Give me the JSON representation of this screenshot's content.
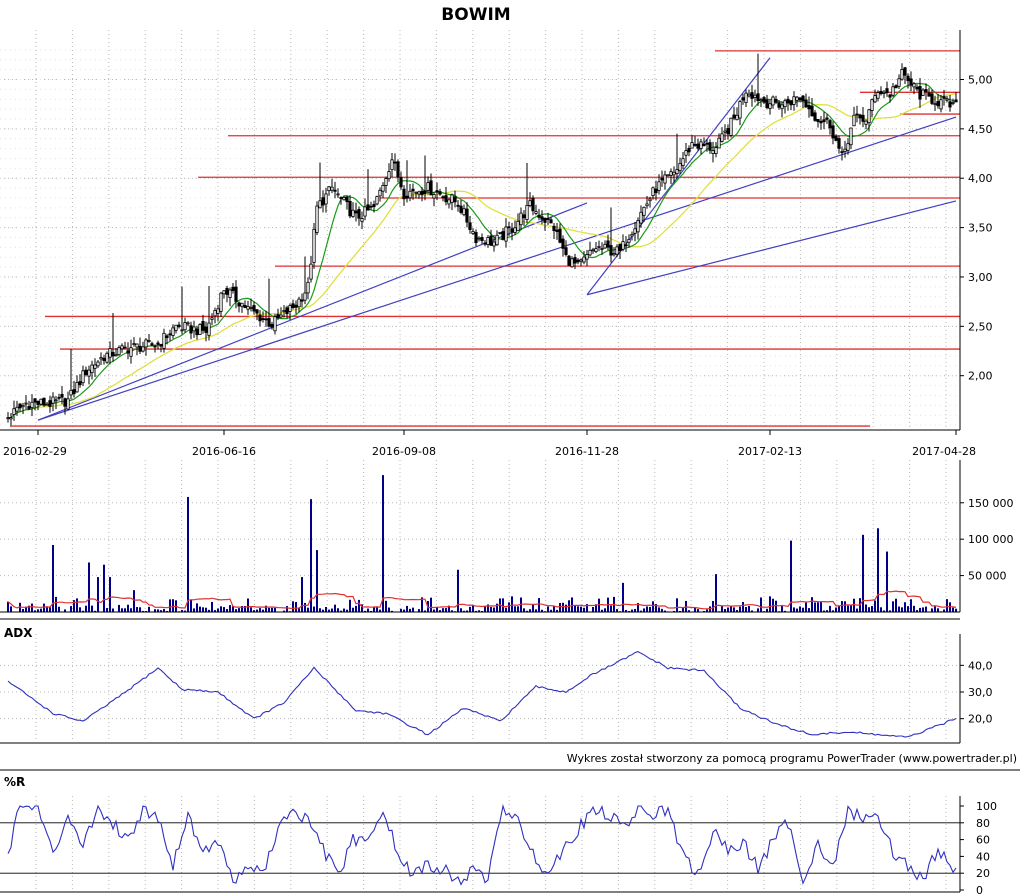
{
  "title": "BOWIM",
  "footer": "Wykres został stworzony za pomocą programu PowerTrader (www.powertrader.pl)",
  "colors": {
    "candle": "#000000",
    "ma_short": "#1a9a1a",
    "ma_long": "#e0e040",
    "hline": "#e03030",
    "trendline": "#4040c0",
    "volume": "#00008b",
    "volume_avg": "#e03030",
    "indicator": "#3030c0"
  },
  "chart_data": [
    {
      "type": "candlestick",
      "name": "price",
      "title": "BOWIM",
      "x_tick_labels": [
        "2016-02-29",
        "2016-06-16",
        "2016-09-08",
        "2016-11-28",
        "2017-02-13",
        "2017-04-28"
      ],
      "y_tick_labels": [
        "2,00",
        "2,50",
        "3,00",
        "3,50",
        "4,00",
        "4,50",
        "5,00"
      ],
      "y_ticks": [
        2.0,
        2.5,
        3.0,
        3.5,
        4.0,
        4.5,
        5.0
      ],
      "ylim": [
        1.45,
        5.4
      ],
      "close_anchors": [
        [
          0,
          1.58
        ],
        [
          6,
          1.72
        ],
        [
          14,
          1.72
        ],
        [
          20,
          1.75
        ],
        [
          26,
          2.05
        ],
        [
          32,
          2.2
        ],
        [
          40,
          2.28
        ],
        [
          50,
          2.32
        ],
        [
          56,
          2.5
        ],
        [
          66,
          2.45
        ],
        [
          72,
          2.88
        ],
        [
          80,
          2.68
        ],
        [
          88,
          2.52
        ],
        [
          96,
          2.72
        ],
        [
          100,
          2.9
        ],
        [
          103,
          3.7
        ],
        [
          108,
          3.9
        ],
        [
          116,
          3.6
        ],
        [
          122,
          3.7
        ],
        [
          128,
          4.2
        ],
        [
          132,
          3.85
        ],
        [
          140,
          3.9
        ],
        [
          150,
          3.75
        ],
        [
          156,
          3.4
        ],
        [
          162,
          3.35
        ],
        [
          168,
          3.5
        ],
        [
          174,
          3.72
        ],
        [
          182,
          3.5
        ],
        [
          186,
          3.2
        ],
        [
          190,
          3.1
        ],
        [
          196,
          3.3
        ],
        [
          204,
          3.25
        ],
        [
          210,
          3.6
        ],
        [
          216,
          3.9
        ],
        [
          222,
          4.05
        ],
        [
          228,
          4.35
        ],
        [
          236,
          4.3
        ],
        [
          242,
          4.6
        ],
        [
          246,
          4.9
        ],
        [
          252,
          4.78
        ],
        [
          258,
          4.75
        ],
        [
          264,
          4.82
        ],
        [
          270,
          4.6
        ],
        [
          274,
          4.55
        ],
        [
          278,
          4.2
        ],
        [
          282,
          4.6
        ],
        [
          286,
          4.6
        ],
        [
          290,
          4.9
        ],
        [
          294,
          4.85
        ],
        [
          298,
          5.05
        ],
        [
          304,
          4.85
        ],
        [
          310,
          4.78
        ],
        [
          316,
          4.72
        ]
      ],
      "support_resistance_levels": [
        5.29,
        4.87,
        4.65,
        4.43,
        4.01,
        3.8,
        3.11,
        2.6,
        2.27,
        1.49
      ],
      "trendlines": [
        {
          "from": [
            "2016-02-29",
            1.55
          ],
          "to": [
            "2016-11-28",
            3.75
          ]
        },
        {
          "from": [
            "2016-02-29",
            1.55
          ],
          "to": [
            "2017-04-28",
            4.62
          ]
        },
        {
          "from": [
            "2016-11-28",
            2.82
          ],
          "to": [
            "2017-04-28",
            3.77
          ]
        },
        {
          "from": [
            "2016-11-28",
            2.82
          ],
          "to": [
            "2017-02-13",
            5.22
          ]
        }
      ],
      "series": [
        {
          "name": "",
          "kind": "moving-average-short",
          "period": 10
        },
        {
          "name": "",
          "kind": "moving-average-long",
          "period": 30
        }
      ]
    },
    {
      "type": "bar",
      "name": "volume",
      "y_tick_labels": [
        "50 000",
        "100 000",
        "150 000"
      ],
      "y_ticks": [
        50000,
        100000,
        150000
      ],
      "ylim": [
        0,
        195000
      ],
      "spikes": [
        [
          15,
          92000
        ],
        [
          27,
          68000
        ],
        [
          30,
          48000
        ],
        [
          32,
          65000
        ],
        [
          34,
          48000
        ],
        [
          42,
          30000
        ],
        [
          60,
          158000
        ],
        [
          98,
          48000
        ],
        [
          101,
          155000
        ],
        [
          103,
          85000
        ],
        [
          125,
          188000
        ],
        [
          150,
          58000
        ],
        [
          205,
          40000
        ],
        [
          236,
          52000
        ],
        [
          261,
          98000
        ],
        [
          285,
          106000
        ],
        [
          290,
          115000
        ],
        [
          293,
          83000
        ]
      ],
      "average_line": true
    },
    {
      "type": "line",
      "name": "ADX",
      "title": "ADX",
      "y_tick_labels": [
        "20,0",
        "30,0",
        "40,0"
      ],
      "y_ticks": [
        20,
        30,
        40
      ],
      "ylim": [
        12,
        48
      ],
      "anchors": [
        [
          0,
          34
        ],
        [
          15,
          22
        ],
        [
          25,
          19
        ],
        [
          38,
          29
        ],
        [
          50,
          39
        ],
        [
          58,
          31
        ],
        [
          70,
          30
        ],
        [
          82,
          20
        ],
        [
          92,
          26
        ],
        [
          102,
          39
        ],
        [
          116,
          23
        ],
        [
          126,
          22
        ],
        [
          140,
          14
        ],
        [
          152,
          24
        ],
        [
          164,
          19
        ],
        [
          176,
          32
        ],
        [
          186,
          30
        ],
        [
          194,
          36
        ],
        [
          210,
          45
        ],
        [
          220,
          39
        ],
        [
          232,
          38
        ],
        [
          244,
          24
        ],
        [
          256,
          18
        ],
        [
          268,
          14
        ],
        [
          280,
          15
        ],
        [
          300,
          13
        ],
        [
          316,
          20
        ]
      ]
    },
    {
      "type": "line",
      "name": "Williams %R",
      "title": "%R",
      "y_tick_labels": [
        "0",
        "20",
        "40",
        "60",
        "80",
        "100"
      ],
      "y_ticks": [
        0,
        20,
        40,
        60,
        80,
        100
      ],
      "ylim": [
        0,
        100
      ],
      "reference_levels": [
        20,
        80
      ],
      "anchors": [
        [
          0,
          38
        ],
        [
          3,
          100
        ],
        [
          10,
          98
        ],
        [
          15,
          40
        ],
        [
          20,
          92
        ],
        [
          25,
          55
        ],
        [
          30,
          98
        ],
        [
          35,
          80
        ],
        [
          40,
          60
        ],
        [
          45,
          96
        ],
        [
          50,
          88
        ],
        [
          55,
          30
        ],
        [
          60,
          90
        ],
        [
          65,
          45
        ],
        [
          70,
          60
        ],
        [
          75,
          8
        ],
        [
          80,
          30
        ],
        [
          85,
          20
        ],
        [
          90,
          70
        ],
        [
          95,
          98
        ],
        [
          100,
          80
        ],
        [
          105,
          50
        ],
        [
          110,
          15
        ],
        [
          115,
          60
        ],
        [
          120,
          55
        ],
        [
          125,
          98
        ],
        [
          130,
          40
        ],
        [
          135,
          18
        ],
        [
          140,
          30
        ],
        [
          145,
          25
        ],
        [
          150,
          10
        ],
        [
          155,
          22
        ],
        [
          160,
          15
        ],
        [
          165,
          98
        ],
        [
          170,
          80
        ],
        [
          175,
          45
        ],
        [
          180,
          18
        ],
        [
          185,
          50
        ],
        [
          190,
          72
        ],
        [
          195,
          95
        ],
        [
          200,
          90
        ],
        [
          205,
          75
        ],
        [
          210,
          95
        ],
        [
          215,
          92
        ],
        [
          220,
          95
        ],
        [
          225,
          40
        ],
        [
          230,
          18
        ],
        [
          235,
          70
        ],
        [
          240,
          45
        ],
        [
          245,
          58
        ],
        [
          250,
          25
        ],
        [
          255,
          60
        ],
        [
          260,
          80
        ],
        [
          265,
          15
        ],
        [
          270,
          55
        ],
        [
          275,
          25
        ],
        [
          280,
          95
        ],
        [
          285,
          85
        ],
        [
          290,
          90
        ],
        [
          295,
          45
        ],
        [
          300,
          30
        ],
        [
          305,
          10
        ],
        [
          310,
          50
        ],
        [
          316,
          20
        ]
      ]
    }
  ]
}
